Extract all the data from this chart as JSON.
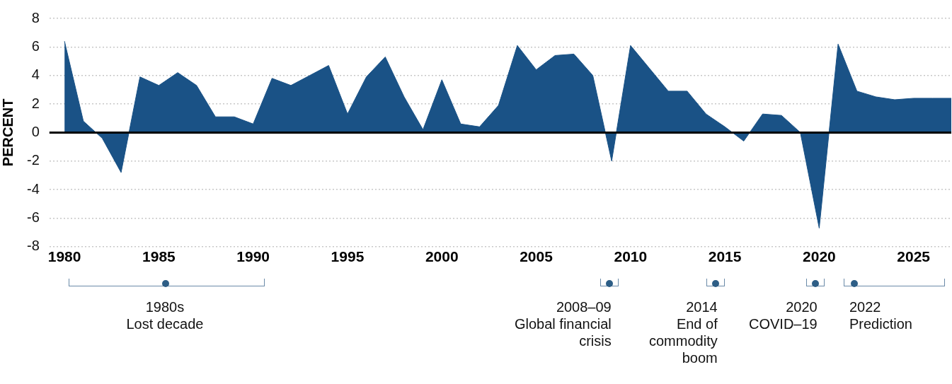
{
  "chart_data": {
    "type": "area",
    "ylabel": "PERCENT",
    "x": [
      1980,
      1981,
      1982,
      1983,
      1984,
      1985,
      1986,
      1987,
      1988,
      1989,
      1990,
      1991,
      1992,
      1993,
      1994,
      1995,
      1996,
      1997,
      1998,
      1999,
      2000,
      2001,
      2002,
      2003,
      2004,
      2005,
      2006,
      2007,
      2008,
      2009,
      2010,
      2011,
      2012,
      2013,
      2014,
      2015,
      2016,
      2017,
      2018,
      2019,
      2020,
      2021,
      2022,
      2023,
      2024,
      2025,
      2026,
      2027
    ],
    "series": [
      {
        "color": "#1a5286",
        "values": [
          6.4,
          0.8,
          -0.4,
          -2.8,
          3.9,
          3.3,
          4.2,
          3.3,
          1.1,
          1.1,
          0.6,
          3.8,
          3.3,
          4.0,
          4.7,
          1.3,
          3.9,
          5.3,
          2.5,
          0.2,
          3.7,
          0.6,
          0.4,
          1.9,
          6.1,
          4.4,
          5.4,
          5.5,
          4.0,
          -2.0,
          6.1,
          4.5,
          2.9,
          2.9,
          1.3,
          0.4,
          -0.6,
          1.3,
          1.2,
          0.0,
          -6.7,
          6.2,
          2.9,
          2.5,
          2.3,
          2.4,
          2.4,
          2.4
        ]
      }
    ],
    "xlim": [
      1979.2,
      2027
    ],
    "xticks": [
      1980,
      1985,
      1990,
      1995,
      2000,
      2005,
      2010,
      2015,
      2020,
      2025
    ],
    "ylim": [
      -8,
      8
    ],
    "yticks": [
      -8,
      -6,
      -4,
      -2,
      0,
      2,
      4,
      6,
      8
    ],
    "grid": "y",
    "legend": false,
    "ref_lines": [
      {
        "axis": "y",
        "value": 0,
        "color": "#000000"
      }
    ],
    "annotations": [
      "1980s\nLost decade",
      "2008–09\nGlobal financial\ncrisis",
      "2014\nEnd of\ncommodity\nboom",
      "2020\nCOVID–19",
      "2022\nPrediction"
    ]
  }
}
